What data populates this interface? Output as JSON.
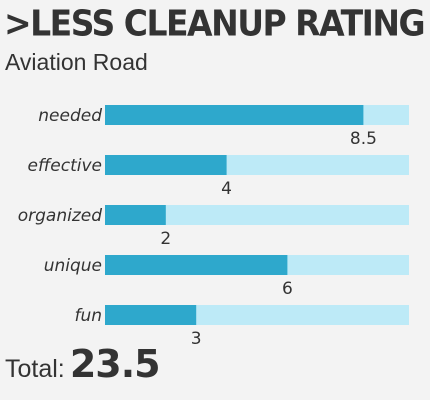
{
  "title": ">LESS CLEANUP RATING",
  "subtitle": "Aviation Road",
  "colors": {
    "bar": "#2ea8cc",
    "track": "#bdeaf7",
    "text": "#333333",
    "background": "#f3f3f3"
  },
  "chart_data": {
    "type": "bar",
    "orientation": "horizontal",
    "categories": [
      "needed",
      "effective",
      "organized",
      "unique",
      "fun"
    ],
    "values": [
      8.5,
      4,
      2,
      6,
      3
    ],
    "value_labels": [
      "8.5",
      "4",
      "2",
      "6",
      "3"
    ],
    "xlim": [
      0,
      10
    ],
    "grid": false
  },
  "total": {
    "label": "Total:",
    "value": "23.5"
  }
}
